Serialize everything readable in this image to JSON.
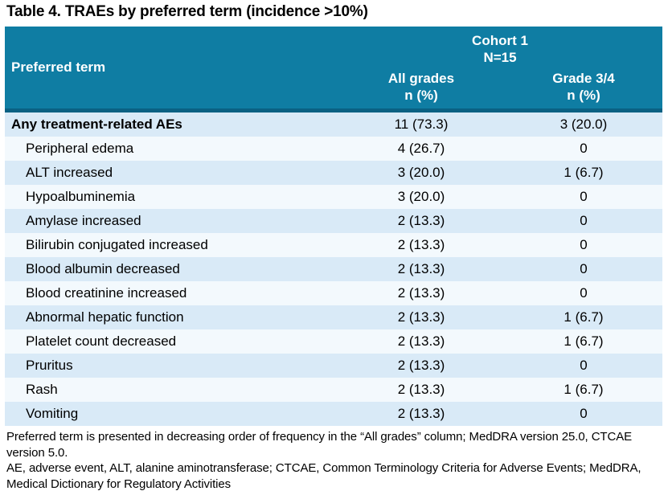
{
  "title": "Table 4. TRAEs by preferred term (incidence >10%)",
  "table": {
    "header": {
      "preferred_term_label": "Preferred term",
      "cohort_label": "Cohort 1",
      "cohort_n": "N=15",
      "col_all_grades": "All grades",
      "col_grade34": "Grade 3/4",
      "n_pct_label": "n (%)"
    },
    "rows": [
      {
        "term": "Any treatment-related AEs",
        "all_grades": "11 (73.3)",
        "grade34": "3 (20.0)"
      },
      {
        "term": "Peripheral edema",
        "all_grades": "4 (26.7)",
        "grade34": "0"
      },
      {
        "term": "ALT increased",
        "all_grades": "3 (20.0)",
        "grade34": "1 (6.7)"
      },
      {
        "term": "Hypoalbuminemia",
        "all_grades": "3 (20.0)",
        "grade34": "0"
      },
      {
        "term": "Amylase increased",
        "all_grades": "2 (13.3)",
        "grade34": "0"
      },
      {
        "term": "Bilirubin conjugated increased",
        "all_grades": "2 (13.3)",
        "grade34": "0"
      },
      {
        "term": "Blood albumin decreased",
        "all_grades": "2 (13.3)",
        "grade34": "0"
      },
      {
        "term": "Blood creatinine increased",
        "all_grades": "2 (13.3)",
        "grade34": "0"
      },
      {
        "term": "Abnormal hepatic function",
        "all_grades": "2 (13.3)",
        "grade34": "1 (6.7)"
      },
      {
        "term": "Platelet count decreased",
        "all_grades": "2 (13.3)",
        "grade34": "1 (6.7)"
      },
      {
        "term": "Pruritus",
        "all_grades": "2 (13.3)",
        "grade34": "0"
      },
      {
        "term": "Rash",
        "all_grades": "2 (13.3)",
        "grade34": "1 (6.7)"
      },
      {
        "term": "Vomiting",
        "all_grades": "2 (13.3)",
        "grade34": "0"
      }
    ]
  },
  "footnotes": [
    "Preferred term is presented in decreasing order of frequency in the “All grades” column; MedDRA version 25.0, CTCAE version 5.0.",
    "AE, adverse event, ALT, alanine aminotransferase; CTCAE, Common Terminology Criteria for Adverse Events; MedDRA, Medical Dictionary for Regulatory Activities"
  ],
  "colors": {
    "header_teal": "#0F7DA3",
    "header_border": "#0A6183",
    "row_blue": "#D9EAF7",
    "row_pale": "#F3F9FD"
  }
}
